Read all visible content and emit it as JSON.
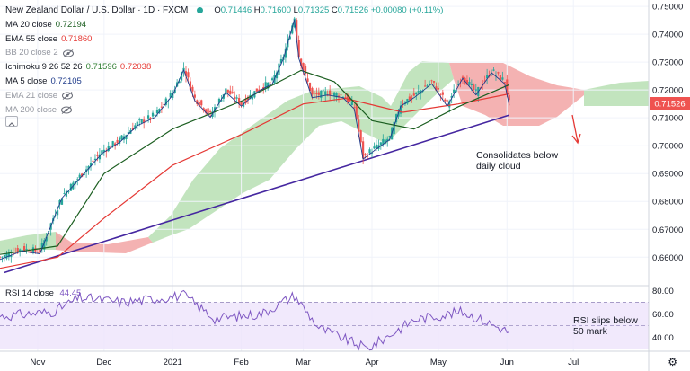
{
  "header": {
    "title": "New Zealand Dollar / U.S. Dollar · 1D · FXCM",
    "open_label": "O",
    "open": "0.71446",
    "high_label": "H",
    "high": "0.71600",
    "low_label": "L",
    "low": "0.71325",
    "close_label": "C",
    "close": "0.71526",
    "change": "+0.00080 (+0.11%)"
  },
  "indicators": [
    {
      "label": "MA 20 close",
      "value": "0.72194",
      "color": "#1b5e20"
    },
    {
      "label": "EMA 55 close",
      "value": "0.71860",
      "color": "#e53935"
    },
    {
      "label": "BB 20 close 2",
      "value": "",
      "color": "#9e9e9e",
      "hidden": true
    },
    {
      "label": "Ichimoku 9 26 52 26",
      "value": "0.71596",
      "value2": "0.72038",
      "color": "#2e7d32",
      "color2": "#e53935"
    },
    {
      "label": "MA 5 close",
      "value": "0.72105",
      "color": "#1e3a8a"
    },
    {
      "label": "EMA 21 close",
      "value": "",
      "color": "#9e9e9e",
      "hidden": true
    },
    {
      "label": "MA 200 close",
      "value": "",
      "color": "#9e9e9e",
      "hidden": true
    }
  ],
  "rsi": {
    "label": "RSI 14 close",
    "value": "44.45",
    "color": "#7e57c2"
  },
  "annotations": {
    "cloud": "Consolidates below\ndaily cloud",
    "rsi": "RSI slips below\n50 mark"
  },
  "price_badge": "0.71526",
  "chart_data": {
    "type": "candlestick",
    "title": "New Zealand Dollar / U.S. Dollar · 1D · FXCM",
    "price_axis": {
      "ticks": [
        "0.75000",
        "0.74000",
        "0.73000",
        "0.72000",
        "0.71000",
        "0.70000",
        "0.69000",
        "0.68000",
        "0.67000",
        "0.66000"
      ],
      "range": [
        0.653,
        0.751
      ]
    },
    "rsi_axis": {
      "ticks": [
        "80.00",
        "60.00",
        "40.00"
      ],
      "range": [
        28,
        82
      ],
      "band": [
        30,
        70
      ]
    },
    "x_axis": {
      "ticks": [
        "Nov",
        "Dec",
        "2021",
        "Feb",
        "Mar",
        "Apr",
        "May",
        "Jun",
        "Jul"
      ]
    },
    "price_path": [
      [
        "Oct 15",
        0.66
      ],
      [
        "Oct 25",
        0.663
      ],
      [
        "Nov 2",
        0.662
      ],
      [
        "Nov 6",
        0.67
      ],
      [
        "Nov 12",
        0.682
      ],
      [
        "Nov 20",
        0.689
      ],
      [
        "Nov 30",
        0.698
      ],
      [
        "Dec 8",
        0.702
      ],
      [
        "Dec 16",
        0.708
      ],
      [
        "Dec 24",
        0.711
      ],
      [
        "Jan 1",
        0.719
      ],
      [
        "Jan 6",
        0.728
      ],
      [
        "Jan 11",
        0.717
      ],
      [
        "Jan 18",
        0.711
      ],
      [
        "Jan 25",
        0.72
      ],
      [
        "Feb 1",
        0.715
      ],
      [
        "Feb 8",
        0.72
      ],
      [
        "Feb 15",
        0.723
      ],
      [
        "Feb 20",
        0.732
      ],
      [
        "Feb 25",
        0.746
      ],
      [
        "Feb 27",
        0.732
      ],
      [
        "Mar 5",
        0.718
      ],
      [
        "Mar 12",
        0.719
      ],
      [
        "Mar 19",
        0.718
      ],
      [
        "Mar 24",
        0.714
      ],
      [
        "Mar 28",
        0.696
      ],
      [
        "Apr 2",
        0.699
      ],
      [
        "Apr 9",
        0.703
      ],
      [
        "Apr 14",
        0.715
      ],
      [
        "Apr 20",
        0.718
      ],
      [
        "Apr 28",
        0.723
      ],
      [
        "May 5",
        0.715
      ],
      [
        "May 12",
        0.725
      ],
      [
        "May 18",
        0.719
      ],
      [
        "May 25",
        0.727
      ],
      [
        "May 31",
        0.723
      ],
      [
        "Jun 2",
        0.7153
      ]
    ],
    "ma20": [
      [
        "Oct 15",
        0.661
      ],
      [
        "Nov 10",
        0.664
      ],
      [
        "Dec 1",
        0.69
      ],
      [
        "Jan 1",
        0.706
      ],
      [
        "Feb 1",
        0.716
      ],
      [
        "Feb 28",
        0.727
      ],
      [
        "Mar 15",
        0.723
      ],
      [
        "Apr 1",
        0.709
      ],
      [
        "Apr 20",
        0.706
      ],
      [
        "May 10",
        0.714
      ],
      [
        "Jun 2",
        0.7219
      ]
    ],
    "ema55": [
      [
        "Oct 15",
        0.656
      ],
      [
        "Nov 10",
        0.66
      ],
      [
        "Dec 1",
        0.674
      ],
      [
        "Jan 1",
        0.693
      ],
      [
        "Feb 1",
        0.704
      ],
      [
        "Mar 1",
        0.715
      ],
      [
        "Mar 20",
        0.717
      ],
      [
        "Apr 15",
        0.712
      ],
      [
        "May 10",
        0.715
      ],
      [
        "Jun 2",
        0.7186
      ]
    ],
    "trendline": [
      [
        "Oct 17",
        0.6545
      ],
      [
        "Jun 2",
        0.711
      ]
    ],
    "rsi_path": [
      [
        "Oct 15",
        58
      ],
      [
        "Nov 8",
        62
      ],
      [
        "Nov 20",
        74
      ],
      [
        "Dec 10",
        70
      ],
      [
        "Jan 6",
        76
      ],
      [
        "Jan 20",
        56
      ],
      [
        "Feb 10",
        60
      ],
      [
        "Feb 25",
        76
      ],
      [
        "Mar 8",
        48
      ],
      [
        "Mar 30",
        30
      ],
      [
        "Apr 20",
        55
      ],
      [
        "May 12",
        62
      ],
      [
        "Jun 2",
        44.45
      ]
    ]
  }
}
